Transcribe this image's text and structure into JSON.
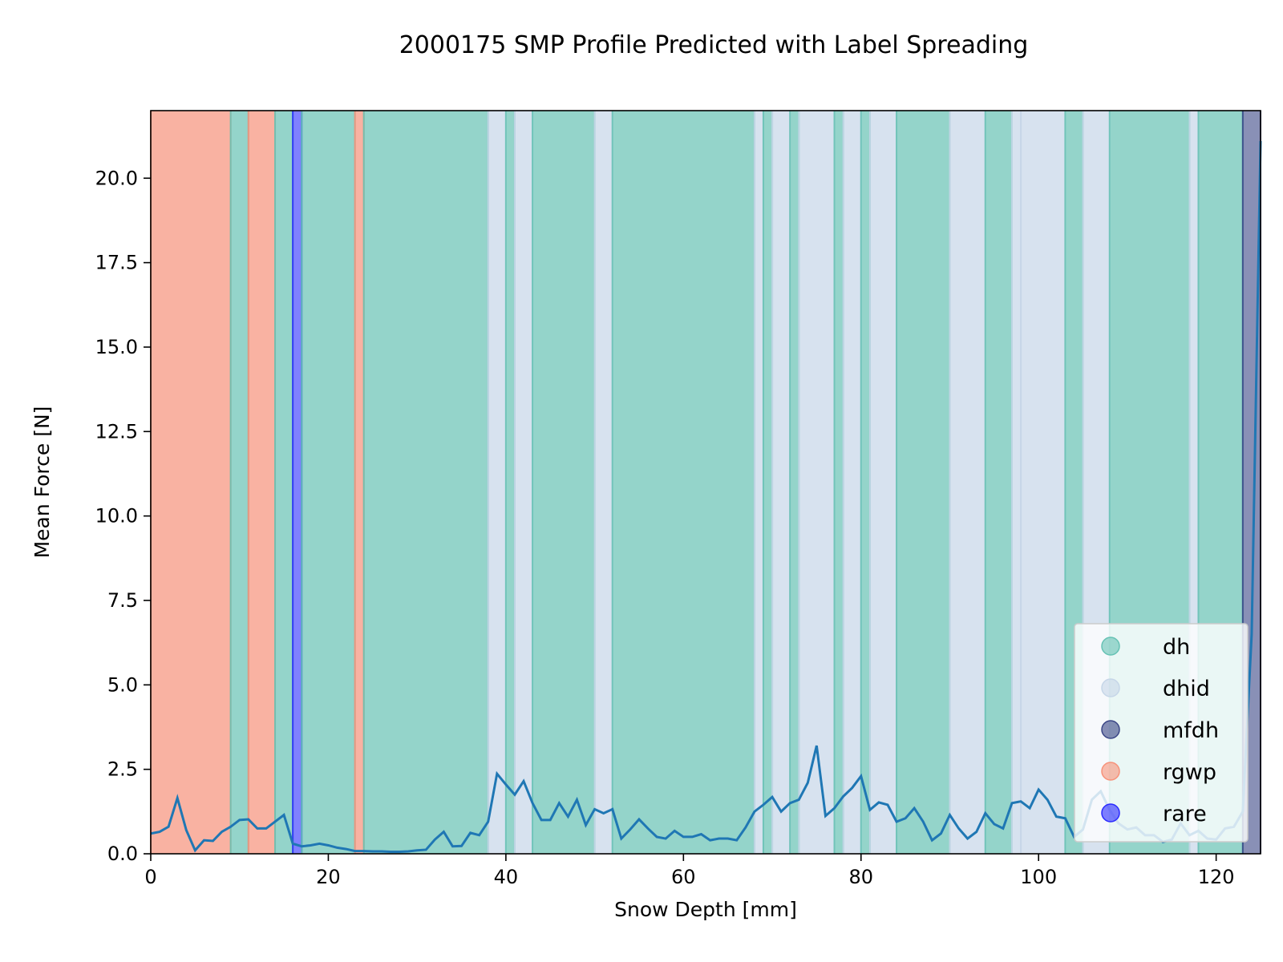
{
  "chart_data": {
    "type": "line",
    "title": "2000175 SMP Profile Predicted with Label Spreading",
    "xlabel": "Snow Depth [mm]",
    "ylabel": "Mean Force [N]",
    "xlim": [
      0,
      125
    ],
    "ylim": [
      0,
      22
    ],
    "xticks": [
      0,
      20,
      40,
      60,
      80,
      100,
      120
    ],
    "xtick_labels": [
      "0",
      "20",
      "40",
      "60",
      "80",
      "100",
      "120"
    ],
    "yticks": [
      0,
      2.5,
      5,
      7.5,
      10,
      12.5,
      15,
      17.5,
      20
    ],
    "ytick_labels": [
      "0.0",
      "2.5",
      "5.0",
      "7.5",
      "10.0",
      "12.5",
      "15.0",
      "17.5",
      "20.0"
    ],
    "grid": false,
    "legend_position": "lower-right",
    "legend": [
      {
        "label": "dh",
        "color": "#66c2b4"
      },
      {
        "label": "dhid",
        "color": "#c6d6e8"
      },
      {
        "label": "mfdh",
        "color": "#3b4686"
      },
      {
        "label": "rgwp",
        "color": "#f7927a"
      },
      {
        "label": "rare",
        "color": "#2b2bff"
      }
    ],
    "class_colors": {
      "dh": "#66c2b4",
      "dhid": "#c6d6e8",
      "mfdh": "#3b4686",
      "rgwp": "#f7927a",
      "rare": "#2b2bff"
    },
    "label_segments": [
      {
        "start": 0,
        "end": 9,
        "label": "rgwp"
      },
      {
        "start": 9,
        "end": 11,
        "label": "dh"
      },
      {
        "start": 11,
        "end": 14,
        "label": "rgwp"
      },
      {
        "start": 14,
        "end": 16,
        "label": "dh"
      },
      {
        "start": 16,
        "end": 17,
        "label": "rare"
      },
      {
        "start": 17,
        "end": 23,
        "label": "dh"
      },
      {
        "start": 23,
        "end": 24,
        "label": "rgwp"
      },
      {
        "start": 24,
        "end": 38,
        "label": "dh"
      },
      {
        "start": 38,
        "end": 40,
        "label": "dhid"
      },
      {
        "start": 40,
        "end": 41,
        "label": "dh"
      },
      {
        "start": 41,
        "end": 43,
        "label": "dhid"
      },
      {
        "start": 43,
        "end": 50,
        "label": "dh"
      },
      {
        "start": 50,
        "end": 52,
        "label": "dhid"
      },
      {
        "start": 52,
        "end": 68,
        "label": "dh"
      },
      {
        "start": 68,
        "end": 69,
        "label": "dhid"
      },
      {
        "start": 69,
        "end": 70,
        "label": "dh"
      },
      {
        "start": 70,
        "end": 72,
        "label": "dhid"
      },
      {
        "start": 72,
        "end": 73,
        "label": "dh"
      },
      {
        "start": 73,
        "end": 77,
        "label": "dhid"
      },
      {
        "start": 77,
        "end": 78,
        "label": "dh"
      },
      {
        "start": 78,
        "end": 80,
        "label": "dhid"
      },
      {
        "start": 80,
        "end": 81,
        "label": "dh"
      },
      {
        "start": 81,
        "end": 84,
        "label": "dhid"
      },
      {
        "start": 84,
        "end": 90,
        "label": "dh"
      },
      {
        "start": 90,
        "end": 94,
        "label": "dhid"
      },
      {
        "start": 94,
        "end": 97,
        "label": "dh"
      },
      {
        "start": 97,
        "end": 98,
        "label": "dhid"
      },
      {
        "start": 98,
        "end": 103,
        "label": "dhid"
      },
      {
        "start": 103,
        "end": 105,
        "label": "dh"
      },
      {
        "start": 105,
        "end": 108,
        "label": "dhid"
      },
      {
        "start": 108,
        "end": 117,
        "label": "dh"
      },
      {
        "start": 117,
        "end": 118,
        "label": "dhid"
      },
      {
        "start": 118,
        "end": 123,
        "label": "dh"
      },
      {
        "start": 123,
        "end": 125,
        "label": "mfdh"
      }
    ],
    "series": [
      {
        "color": "#1f77b4",
        "x": [
          0,
          1,
          2,
          3,
          4,
          5,
          6,
          7,
          8,
          9,
          10,
          11,
          12,
          13,
          14,
          15,
          16,
          17,
          18,
          19,
          20,
          21,
          22,
          23,
          24,
          25,
          26,
          27,
          28,
          29,
          30,
          31,
          32,
          33,
          34,
          35,
          36,
          37,
          38,
          39,
          40,
          41,
          42,
          43,
          44,
          45,
          46,
          47,
          48,
          49,
          50,
          51,
          52,
          53,
          54,
          55,
          56,
          57,
          58,
          59,
          60,
          61,
          62,
          63,
          64,
          65,
          66,
          67,
          68,
          69,
          70,
          71,
          72,
          73,
          74,
          75,
          76,
          77,
          78,
          79,
          80,
          81,
          82,
          83,
          84,
          85,
          86,
          87,
          88,
          89,
          90,
          91,
          92,
          93,
          94,
          95,
          96,
          97,
          98,
          99,
          100,
          101,
          102,
          103,
          104,
          105,
          106,
          107,
          108,
          109,
          110,
          111,
          112,
          113,
          114,
          115,
          116,
          117,
          118,
          119,
          120,
          121,
          122,
          123,
          124,
          125
        ],
        "y": [
          0.6,
          0.65,
          0.8,
          1.65,
          0.7,
          0.1,
          0.4,
          0.38,
          0.65,
          0.8,
          1.0,
          1.02,
          0.75,
          0.75,
          0.95,
          1.15,
          0.3,
          0.22,
          0.25,
          0.3,
          0.25,
          0.18,
          0.14,
          0.08,
          0.08,
          0.07,
          0.07,
          0.06,
          0.06,
          0.07,
          0.1,
          0.12,
          0.42,
          0.65,
          0.22,
          0.23,
          0.62,
          0.55,
          0.95,
          2.37,
          2.05,
          1.75,
          2.15,
          1.5,
          1.0,
          1.0,
          1.5,
          1.1,
          1.6,
          0.85,
          1.32,
          1.2,
          1.32,
          0.45,
          0.72,
          1.02,
          0.75,
          0.5,
          0.45,
          0.68,
          0.5,
          0.5,
          0.58,
          0.4,
          0.45,
          0.45,
          0.4,
          0.78,
          1.25,
          1.45,
          1.68,
          1.25,
          1.5,
          1.6,
          2.1,
          3.2,
          1.12,
          1.35,
          1.7,
          1.95,
          2.3,
          1.3,
          1.52,
          1.45,
          0.95,
          1.05,
          1.35,
          0.95,
          0.4,
          0.6,
          1.15,
          0.75,
          0.45,
          0.65,
          1.2,
          0.88,
          0.75,
          1.5,
          1.55,
          1.35,
          1.9,
          1.6,
          1.1,
          1.05,
          0.5,
          0.72,
          1.6,
          1.85,
          1.3,
          0.9,
          0.72,
          0.78,
          0.55,
          0.55,
          0.35,
          0.42,
          0.9,
          0.55,
          0.68,
          0.45,
          0.42,
          0.75,
          0.8,
          1.25,
          6.5,
          21.1
        ]
      }
    ]
  }
}
